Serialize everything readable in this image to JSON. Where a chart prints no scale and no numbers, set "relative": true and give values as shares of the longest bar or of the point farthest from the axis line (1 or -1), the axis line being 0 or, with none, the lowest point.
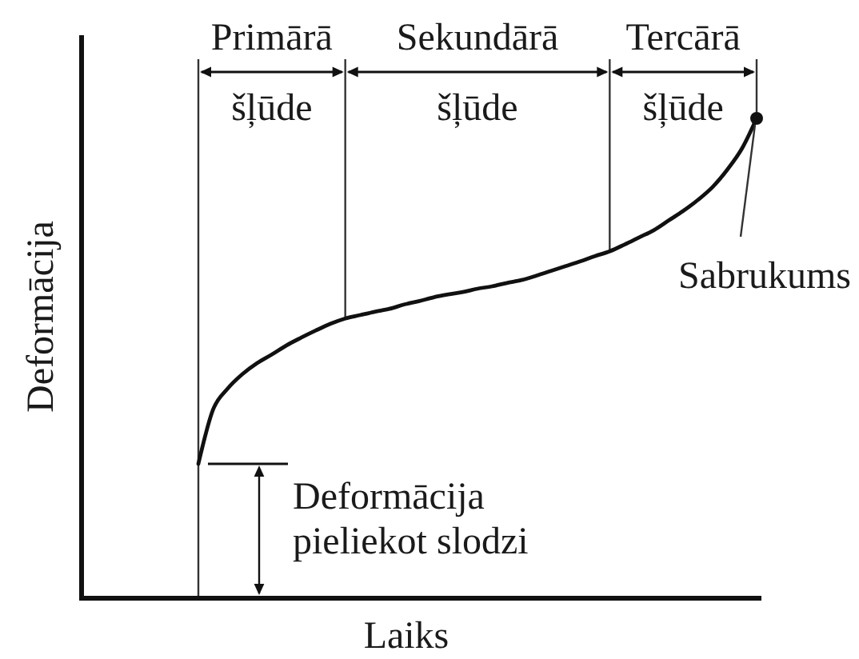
{
  "chart_data": {
    "type": "line",
    "xlabel": "Laiks",
    "ylabel": "Deformācija",
    "relative": true,
    "categories": [
      null,
      null,
      null,
      null,
      null,
      null,
      null,
      null,
      null,
      null,
      null,
      null,
      null,
      null,
      null,
      null,
      null,
      null,
      null,
      null,
      null,
      null,
      null,
      null,
      null,
      null,
      null,
      null,
      null,
      null,
      null,
      null,
      null,
      null,
      null,
      null,
      null,
      null,
      null
    ],
    "color": "#111111",
    "values": [
      0.28,
      0.393,
      0.437,
      0.467,
      0.49,
      0.508,
      0.527,
      0.543,
      0.558,
      0.572,
      0.583,
      0.59,
      0.597,
      0.603,
      0.612,
      0.619,
      0.627,
      0.633,
      0.638,
      0.645,
      0.65,
      0.657,
      0.663,
      0.672,
      0.682,
      0.692,
      0.702,
      0.713,
      0.723,
      0.737,
      0.752,
      0.767,
      0.787,
      0.807,
      0.83,
      0.857,
      0.893,
      0.937,
      1
    ],
    "annotations": [
      "Primārā šļūde",
      "Sekundārā šļūde",
      "Tercārā šļūde",
      "Deformācija pieliekot slodzi",
      "Sabrukums"
    ]
  }
}
